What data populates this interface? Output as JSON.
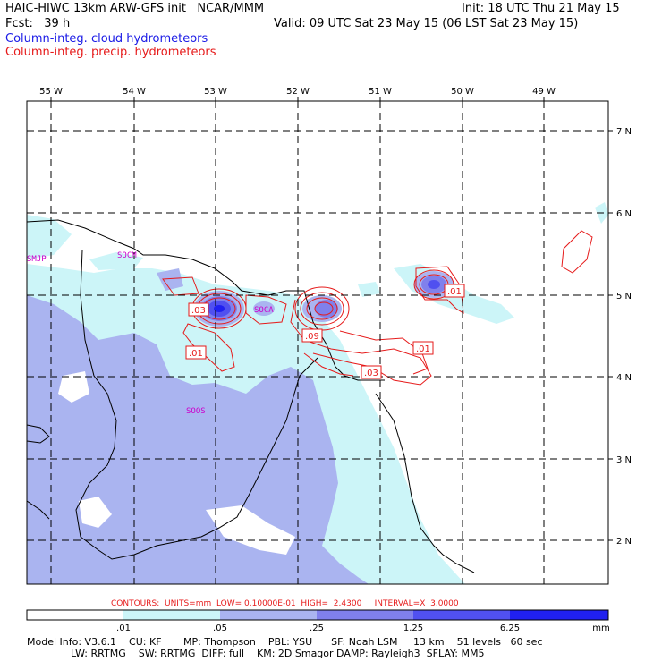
{
  "header": {
    "title": "HAIC-HIWC 13km ARW-GFS init   NCAR/MMM",
    "fcst": "Fcst:   39 h",
    "init": "Init: 18 UTC Thu 21 May 15",
    "valid": "Valid: 09 UTC Sat 23 May 15 (06 LST Sat 23 May 15)",
    "legend_cloud": "Column-integ. cloud hydrometeors",
    "legend_precip": "Column-integ. precip. hydrometeors",
    "color_cloud": "#1a1ae6",
    "color_precip": "#e61a1a"
  },
  "map": {
    "lon_labels": [
      "55 W",
      "54 W",
      "53 W",
      "52 W",
      "51 W",
      "50 W",
      "49 W"
    ],
    "lat_labels": [
      "7 N",
      "6 N",
      "5 N",
      "4 N",
      "3 N",
      "2 N"
    ],
    "station_labels": [
      "SMJP",
      "SOCM",
      "SOCA",
      "SOOS"
    ],
    "contour_labels": [
      ".03",
      ".01",
      ".09",
      ".03",
      ".01",
      ".01"
    ]
  },
  "contours_note": "CONTOURS:  UNITS=mm  LOW= 0.10000E-01  HIGH=  2.4300     INTERVAL=X  3.0000",
  "colorbar": {
    "ticks": [
      ".01",
      ".05",
      ".25",
      "1.25",
      "6.25"
    ],
    "unit": "mm",
    "colors": [
      "#ffffff",
      "#ccf5f8",
      "#aab4f0",
      "#8080ec",
      "#5050f0",
      "#2020f0"
    ]
  },
  "model_info": {
    "line1": "Model Info: V3.6.1    CU: KF       MP: Thompson    PBL: YSU      SF: Noah LSM     13 km    51 levels   60 sec",
    "line2": "              LW: RRTMG    SW: RRTMG  DIFF: full    KM: 2D Smagor DAMP: Rayleigh3  SFLAY: MM5"
  }
}
